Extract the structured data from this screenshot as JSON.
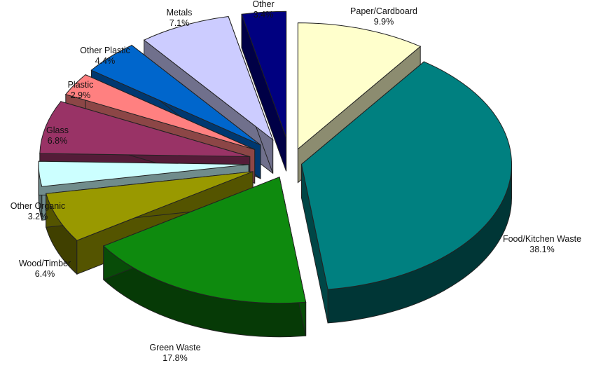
{
  "chart_data": {
    "type": "pie",
    "title": "",
    "exploded": true,
    "three_d": true,
    "slices": [
      {
        "label": "Paper/Cardboard",
        "value": 9.9,
        "value_label": "9.9%",
        "color": "#FFFFCC"
      },
      {
        "label": "Food/Kitchen Waste",
        "value": 38.1,
        "value_label": "38.1%",
        "color": "#008080"
      },
      {
        "label": "Green Waste",
        "value": 17.8,
        "value_label": "17.8%",
        "color": "#0E8A0E"
      },
      {
        "label": "Wood/Timber",
        "value": 6.4,
        "value_label": "6.4%",
        "color": "#999900"
      },
      {
        "label": "Other Organic",
        "value": 3.2,
        "value_label": "3.2%",
        "color": "#CCFFFF"
      },
      {
        "label": "Glass",
        "value": 6.8,
        "value_label": "6.8%",
        "color": "#993366"
      },
      {
        "label": "Plastic",
        "value": 2.9,
        "value_label": "2.9%",
        "color": "#FF8080"
      },
      {
        "label": "Other Plastic",
        "value": 4.4,
        "value_label": "4.4%",
        "color": "#0066CC"
      },
      {
        "label": "Metals",
        "value": 7.1,
        "value_label": "7.1%",
        "color": "#CCCCFF"
      },
      {
        "label": "Other",
        "value": 3.4,
        "value_label": "3.4%",
        "color": "#000080"
      }
    ]
  }
}
